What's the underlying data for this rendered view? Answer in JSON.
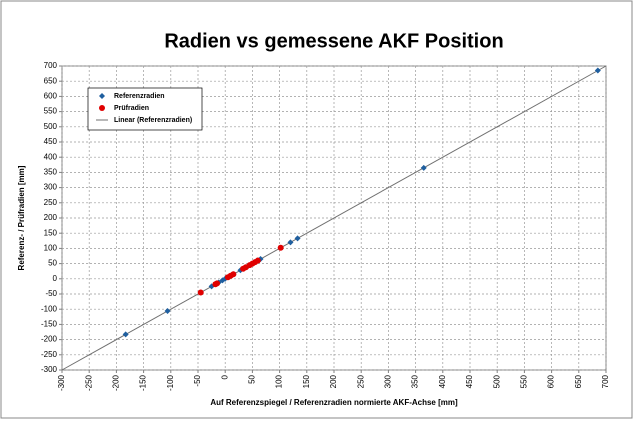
{
  "chart_data": {
    "type": "scatter",
    "title": "Radien vs gemessene AKF Position",
    "x_label": "Auf Referenzspiegel  / Referenzradien normierte AKF-Achse [mm]",
    "y_label": "Referenz- / Prüfradien [mm]",
    "xlim": [
      -300,
      700
    ],
    "ylim": [
      -300,
      700
    ],
    "xticks": [
      -300,
      -250,
      -200,
      -150,
      -100,
      -50,
      0,
      50,
      100,
      150,
      200,
      250,
      300,
      350,
      400,
      450,
      500,
      550,
      600,
      650,
      700
    ],
    "yticks": [
      -300,
      -250,
      -200,
      -150,
      -100,
      -50,
      0,
      50,
      100,
      150,
      200,
      250,
      300,
      350,
      400,
      450,
      500,
      550,
      600,
      650,
      700
    ],
    "grid": true,
    "legend": "upper left",
    "series": [
      {
        "name": "Referenzradien",
        "color": "#1f5f9f",
        "marker": "diamond",
        "x": [
          -183,
          -106,
          -25,
          -12,
          -5,
          0,
          15,
          28,
          42,
          55,
          65,
          120,
          133,
          365,
          685
        ],
        "values": [
          -183,
          -106,
          -25,
          -12,
          -5,
          0,
          15,
          28,
          42,
          55,
          65,
          120,
          133,
          365,
          685
        ]
      },
      {
        "name": "Prüfradien",
        "color": "#e00000",
        "marker": "circle",
        "x": [
          -45,
          -18,
          -15,
          5,
          10,
          15,
          33,
          38,
          45,
          50,
          55,
          60,
          102
        ],
        "values": [
          -45,
          -18,
          -15,
          5,
          10,
          15,
          33,
          38,
          45,
          50,
          55,
          60,
          102
        ]
      },
      {
        "name": "Linear (Referenzradien)",
        "color": "#707070",
        "marker": "line",
        "x": [
          -300,
          700
        ],
        "values": [
          -300,
          700
        ]
      }
    ]
  }
}
